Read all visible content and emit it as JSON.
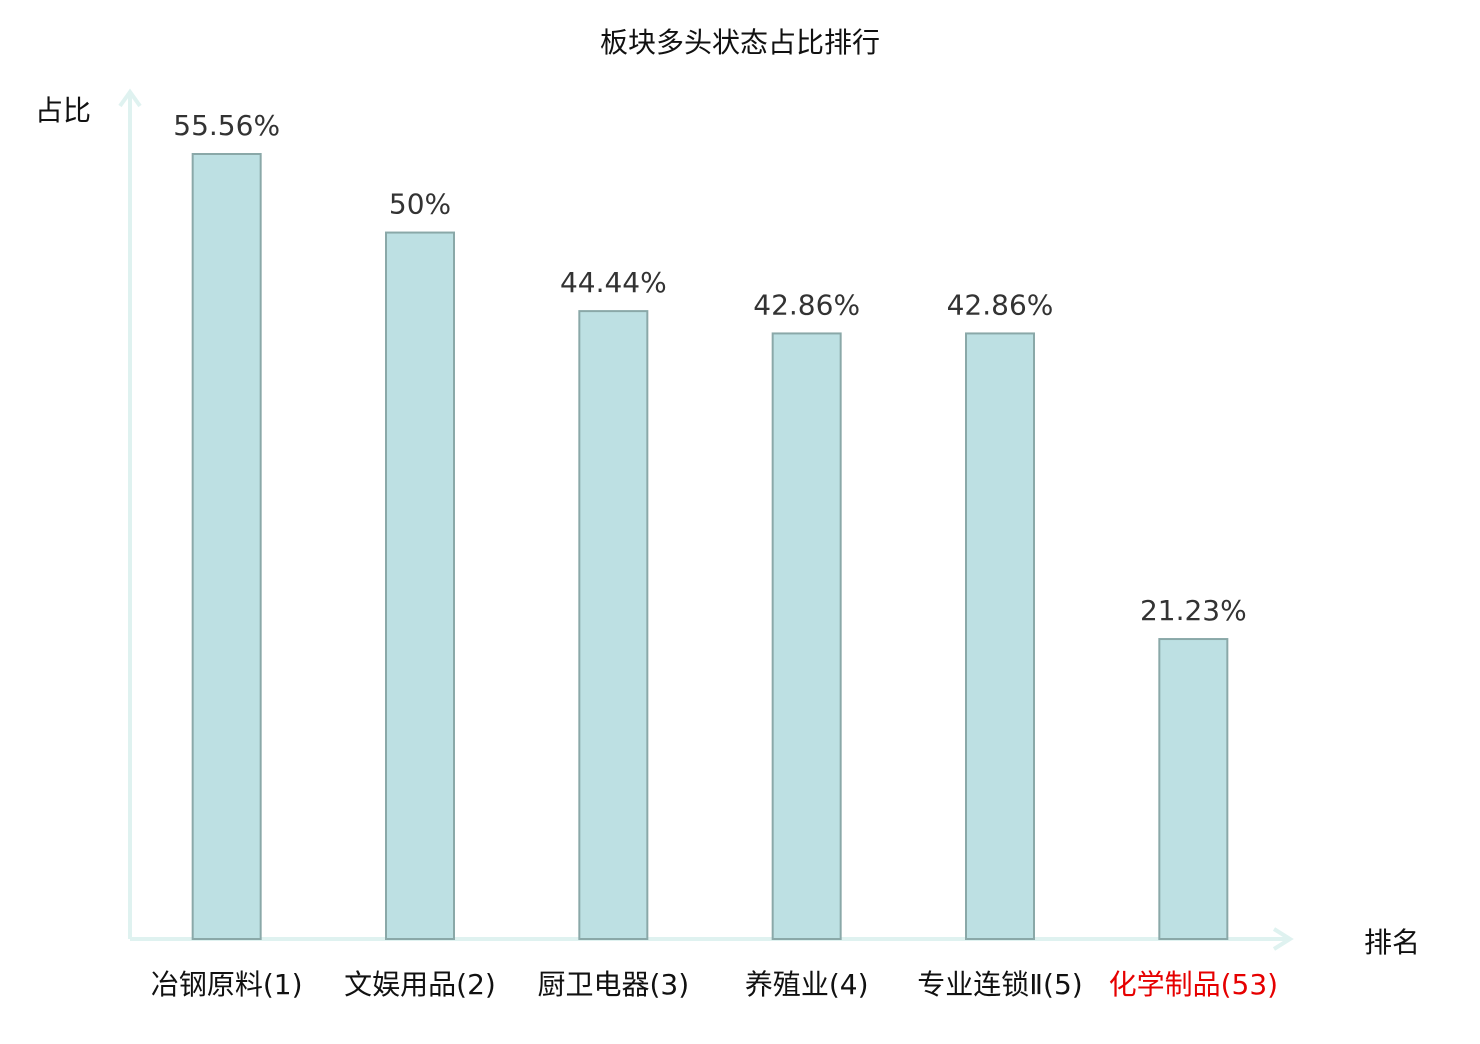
{
  "chart_data": {
    "type": "bar",
    "title": "板块多头状态占比排行",
    "xlabel": "排名",
    "ylabel": "占比",
    "categories": [
      "冶钢原料(1)",
      "文娱用品(2)",
      "厨卫电器(3)",
      "养殖业(4)",
      "专业连锁Ⅱ(5)",
      "化学制品(53)"
    ],
    "values": [
      55.56,
      50,
      44.44,
      42.86,
      42.86,
      21.23
    ],
    "data_labels": [
      "55.56%",
      "50%",
      "44.44%",
      "42.86%",
      "42.86%",
      "21.23%"
    ],
    "highlight_index": 5,
    "ylim": [
      0,
      55.56
    ],
    "grid": false,
    "colors": {
      "bar_fill": "#bde0e3",
      "bar_stroke": "#8aa8a8",
      "axis": "#dff2f0",
      "highlight_label": "#e60000",
      "text": "#333333"
    }
  }
}
